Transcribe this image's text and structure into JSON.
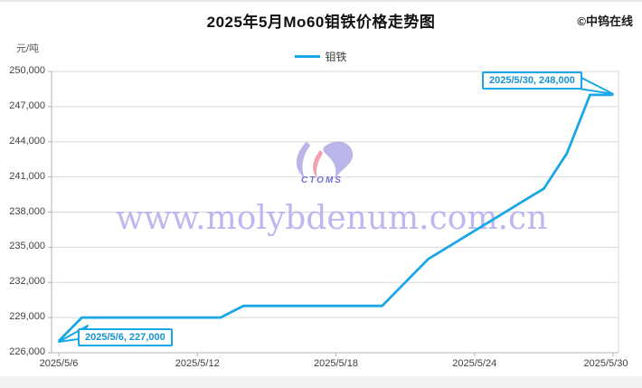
{
  "header": {
    "title": "2025年5月Mo60钼铁价格走势图",
    "copyright": "©中钨在线"
  },
  "legend": {
    "series_label": "钼铁"
  },
  "axes": {
    "y_unit": "元/吨"
  },
  "watermark": {
    "url_text": "www.molybdenum.com.cn",
    "logo_text": "CTOMS"
  },
  "annotations": {
    "start_label": "2025/5/6, 227,000",
    "end_label": "2025/5/30, 248,000"
  },
  "colors": {
    "line": "#1aa7e8",
    "grid": "#d9d9d9",
    "axis": "#b3b3b3",
    "callout_border": "#1aa7e8",
    "watermark_text": "#b6b1ee"
  },
  "chart_data": {
    "type": "line",
    "title": "2025年5月Mo60钼铁价格走势图",
    "ylabel": "元/吨",
    "ylim": [
      226000,
      250000
    ],
    "ytick_step": 3000,
    "ytick_labels": [
      "250,000",
      "247,000",
      "244,000",
      "241,000",
      "238,000",
      "235,000",
      "232,000",
      "229,000",
      "226,000"
    ],
    "xtick_labels": [
      "2025/5/6",
      "2025/5/12",
      "2025/5/18",
      "2025/5/24",
      "2025/5/30"
    ],
    "xtick_indices": [
      0,
      6,
      12,
      18,
      24
    ],
    "grid": true,
    "legend_position": "top",
    "x": [
      "2025/5/6",
      "2025/5/7",
      "2025/5/8",
      "2025/5/9",
      "2025/5/10",
      "2025/5/11",
      "2025/5/12",
      "2025/5/13",
      "2025/5/14",
      "2025/5/15",
      "2025/5/16",
      "2025/5/17",
      "2025/5/18",
      "2025/5/19",
      "2025/5/20",
      "2025/5/21",
      "2025/5/22",
      "2025/5/23",
      "2025/5/24",
      "2025/5/25",
      "2025/5/26",
      "2025/5/27",
      "2025/5/28",
      "2025/5/29",
      "2025/5/30"
    ],
    "series": [
      {
        "name": "钼铁",
        "values": [
          227000,
          229000,
          229000,
          229000,
          229000,
          229000,
          229000,
          229000,
          230000,
          230000,
          230000,
          230000,
          230000,
          230000,
          230000,
          232000,
          234000,
          235200,
          236400,
          237600,
          238800,
          240000,
          243000,
          248000,
          248000
        ]
      }
    ]
  }
}
